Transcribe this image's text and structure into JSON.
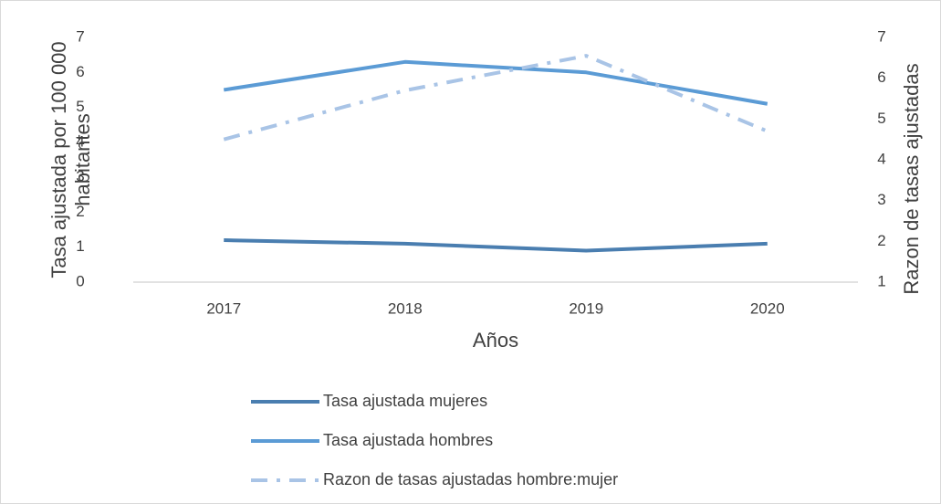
{
  "chart_data": {
    "type": "line",
    "xlabel": "Años",
    "ylabel": [
      "Tasa ajustada  por 100 000",
      "habitantes"
    ],
    "y2label": "Razon de tasas ajustadas",
    "categories": [
      "2017",
      "2018",
      "2019",
      "2020"
    ],
    "series": [
      {
        "name": "Tasa ajustada mujeres",
        "color": "#4a7eb0",
        "values": [
          1.2,
          1.1,
          0.9,
          1.1
        ]
      },
      {
        "name": "Tasa ajustada hombres",
        "color": "#5b9bd5",
        "values": [
          5.5,
          6.3,
          6.0,
          5.1
        ]
      },
      {
        "name": "Razon de tasas ajustadas hombre:mujer",
        "color": "#a9c4e6",
        "dash": "dashdot",
        "axis": "y2",
        "values": [
          4.5,
          5.7,
          6.55,
          4.7
        ]
      }
    ],
    "ylim": [
      0,
      7
    ],
    "yticks": [
      0,
      1,
      2,
      3,
      4,
      5,
      6,
      7
    ],
    "y2lim": [
      1,
      7
    ],
    "y2ticks": [
      1,
      2,
      3,
      4,
      5,
      6,
      7
    ],
    "grid": false,
    "legend": "bottom"
  }
}
